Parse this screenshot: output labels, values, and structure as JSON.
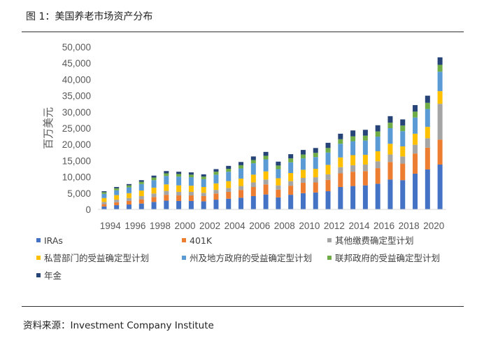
{
  "figure": {
    "title": "图 1：美国养老市场资产分布",
    "source": "资料来源：Investment Company Institute"
  },
  "chart_data": {
    "type": "bar",
    "stacked": true,
    "ylabel": "百万美元",
    "xlabel": "",
    "ylim": [
      0,
      50000
    ],
    "yticks": [
      "0",
      "5,000",
      "10,000",
      "15,000",
      "20,000",
      "25,000",
      "30,000",
      "35,000",
      "40,000",
      "45,000",
      "50,000"
    ],
    "x_tick_labels": [
      "1994",
      "1996",
      "1998",
      "2000",
      "2002",
      "2004",
      "2006",
      "2008",
      "2010",
      "2012",
      "2014",
      "2016",
      "2018",
      "2020"
    ],
    "categories": [
      "1994",
      "1995",
      "1996",
      "1997",
      "1998",
      "1999",
      "2000",
      "2001",
      "2002",
      "2003",
      "2004",
      "2005",
      "2006",
      "2007",
      "2008",
      "2009",
      "2010",
      "2011",
      "2012",
      "2013",
      "2014",
      "2015",
      "2016",
      "2017",
      "2018",
      "2019",
      "2020",
      "2021"
    ],
    "grid": false,
    "legend_position": "bottom",
    "series": [
      {
        "name": "IRAs",
        "color": "#4472C4",
        "values": [
          900,
          1300,
          1500,
          1800,
          2300,
          2700,
          2600,
          2600,
          2500,
          3000,
          3300,
          3600,
          4100,
          4600,
          3700,
          4500,
          5000,
          5200,
          5600,
          6900,
          7200,
          7400,
          7900,
          9200,
          9000,
          11000,
          12300,
          13800
        ]
      },
      {
        "name": "401K",
        "color": "#ED7D31",
        "values": [
          700,
          900,
          1100,
          1300,
          1500,
          1800,
          1700,
          1700,
          1600,
          1900,
          2100,
          2400,
          2800,
          3100,
          2400,
          2800,
          3200,
          3100,
          3500,
          4200,
          4400,
          4400,
          4800,
          5400,
          5100,
          6200,
          6700,
          7700
        ]
      },
      {
        "name": "其他缴费确定型计划",
        "color": "#A5A5A5",
        "values": [
          700,
          800,
          900,
          1000,
          1100,
          1200,
          1100,
          1100,
          1000,
          1100,
          1200,
          1200,
          1400,
          1500,
          1300,
          1400,
          1500,
          1600,
          1700,
          1900,
          2000,
          2000,
          2100,
          2300,
          2200,
          2700,
          2900,
          11000
        ]
      },
      {
        "name": "私营部门的受益确定型计划",
        "color": "#FFC000",
        "values": [
          1200,
          1400,
          1500,
          1700,
          1800,
          2000,
          2000,
          1900,
          1800,
          2000,
          2100,
          2300,
          2400,
          2500,
          2200,
          2500,
          2500,
          2600,
          2900,
          3000,
          3100,
          3000,
          3100,
          3300,
          3100,
          3400,
          3500,
          3900
        ]
      },
      {
        "name": "州及地方政府的受益确定型计划",
        "color": "#5B9BD5",
        "values": [
          1300,
          1500,
          1800,
          2000,
          2300,
          2600,
          2700,
          2600,
          2400,
          2700,
          2900,
          3100,
          3500,
          3700,
          2800,
          3300,
          3500,
          3600,
          3800,
          4200,
          4300,
          4400,
          4500,
          4800,
          4700,
          5000,
          5500,
          6000
        ]
      },
      {
        "name": "联邦政府的受益确定型计划",
        "color": "#70AD47",
        "values": [
          500,
          600,
          600,
          700,
          800,
          800,
          800,
          800,
          800,
          900,
          900,
          1000,
          1000,
          1100,
          1100,
          1200,
          1200,
          1300,
          1400,
          1400,
          1500,
          1500,
          1600,
          1700,
          1700,
          1800,
          1900,
          2100
        ]
      },
      {
        "name": "年金",
        "color": "#264478",
        "values": [
          300,
          400,
          400,
          500,
          600,
          700,
          700,
          700,
          700,
          800,
          900,
          1000,
          1100,
          1200,
          1200,
          1300,
          1400,
          1500,
          1600,
          1700,
          1800,
          1800,
          1900,
          2000,
          1900,
          2000,
          2200,
          2300
        ]
      }
    ]
  }
}
